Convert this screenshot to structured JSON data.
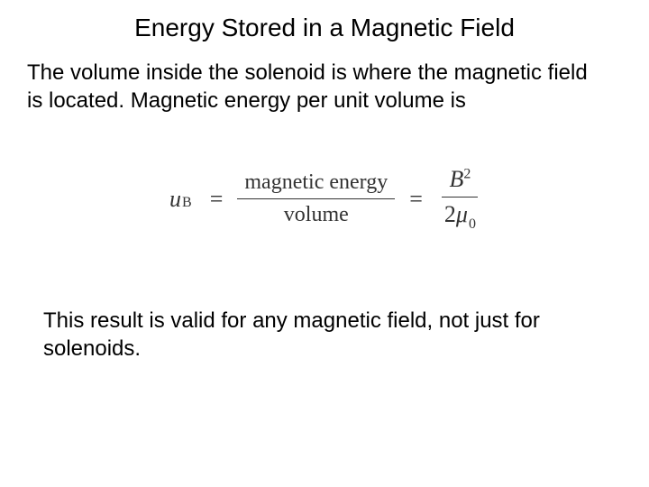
{
  "title": "Energy Stored in a Magnetic Field",
  "para1": "The volume inside the solenoid is where the magnetic field is located.  Magnetic energy per unit volume is",
  "equation": {
    "lhs_var": "u",
    "lhs_sub": "B",
    "eq": "=",
    "frac1_num": "magnetic energy",
    "frac1_den": "volume",
    "eq2": "=",
    "frac2_num_var": "B",
    "frac2_num_sup": "2",
    "frac2_den_coef": "2",
    "frac2_den_var": "μ",
    "frac2_den_sub": "0"
  },
  "para2": "This result is valid for any magnetic field, not just for solenoids.",
  "colors": {
    "background": "#ffffff",
    "text": "#000000",
    "equation_text": "#333333"
  },
  "fonts": {
    "body_family": "Arial, Helvetica, sans-serif",
    "equation_family": "Times New Roman, Times, serif",
    "title_size": 28,
    "body_size": 24,
    "equation_size": 26
  }
}
